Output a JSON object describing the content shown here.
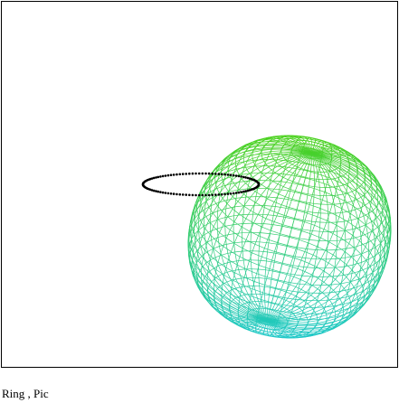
{
  "caption": "Ring , Pic",
  "scene": {
    "objects": [
      {
        "name": "ring",
        "render": "dotted-ellipse",
        "color": "#000000"
      },
      {
        "name": "pic",
        "render": "wireframe-ellipsoid",
        "color_top": "#4cd21e",
        "color_bottom": "#1ec8c8"
      }
    ]
  }
}
